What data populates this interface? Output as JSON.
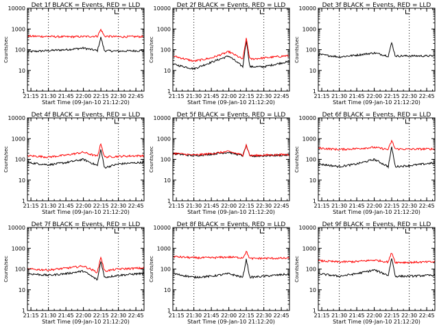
{
  "figure": {
    "x_axis_label": "Start Time (09-Jan-10 21:12:20)",
    "y_axis_label": "Counts/sec",
    "x_tick_labels": [
      "21:15",
      "21:30",
      "21:45",
      "22:00",
      "22:15",
      "22:30",
      "22:45"
    ],
    "y_tick_labels": [
      "1",
      "10",
      "100",
      "1000",
      "10000"
    ],
    "events_color": "#000000",
    "lld_color": "#ff0000"
  },
  "chart_data": [
    {
      "type": "line",
      "title": "Det 1f BLACK = Events, RED = LLD",
      "yscale": "log",
      "ylim": [
        1,
        10000
      ],
      "x": [
        "21:12",
        "21:45",
        "22:00",
        "22:12",
        "22:15",
        "22:18",
        "22:30",
        "22:48"
      ],
      "series": [
        {
          "name": "Events",
          "values": [
            80,
            100,
            120,
            90,
            400,
            90,
            85,
            90
          ]
        },
        {
          "name": "LLD",
          "values": [
            450,
            420,
            430,
            450,
            950,
            450,
            420,
            430
          ]
        }
      ]
    },
    {
      "type": "line",
      "title": "Det 2f BLACK = Events, RED = LLD",
      "yscale": "log",
      "ylim": [
        1,
        10000
      ],
      "x": [
        "21:12",
        "21:30",
        "21:45",
        "22:00",
        "22:12",
        "22:15",
        "22:18",
        "22:30",
        "22:48"
      ],
      "series": [
        {
          "name": "Events",
          "values": [
            20,
            12,
            25,
            50,
            15,
            300,
            15,
            15,
            25
          ]
        },
        {
          "name": "LLD",
          "values": [
            50,
            28,
            40,
            80,
            35,
            350,
            35,
            40,
            50
          ]
        }
      ]
    },
    {
      "type": "line",
      "title": "Det 3f BLACK = Events, RED = LLD",
      "yscale": "log",
      "ylim": [
        1,
        10000
      ],
      "x": [
        "21:12",
        "21:30",
        "21:45",
        "22:00",
        "22:12",
        "22:15",
        "22:18",
        "22:30",
        "22:48"
      ],
      "series": [
        {
          "name": "Events",
          "values": [
            60,
            45,
            55,
            70,
            50,
            220,
            50,
            50,
            50
          ]
        }
      ]
    },
    {
      "type": "line",
      "title": "Det 4f BLACK = Events, RED = LLD",
      "yscale": "log",
      "ylim": [
        1,
        10000
      ],
      "x": [
        "21:12",
        "21:30",
        "21:45",
        "22:00",
        "22:12",
        "22:15",
        "22:18",
        "22:30",
        "22:48"
      ],
      "series": [
        {
          "name": "Events",
          "values": [
            70,
            55,
            70,
            100,
            50,
            300,
            40,
            60,
            70
          ]
        },
        {
          "name": "LLD",
          "values": [
            150,
            130,
            160,
            220,
            140,
            600,
            130,
            140,
            150
          ]
        }
      ]
    },
    {
      "type": "line",
      "title": "Det 5f BLACK = Events, RED = LLD",
      "yscale": "log",
      "ylim": [
        1,
        10000
      ],
      "x": [
        "21:12",
        "21:30",
        "21:45",
        "22:00",
        "22:12",
        "22:15",
        "22:18",
        "22:30",
        "22:48"
      ],
      "series": [
        {
          "name": "Events",
          "values": [
            190,
            150,
            180,
            220,
            150,
            480,
            140,
            150,
            160
          ]
        },
        {
          "name": "LLD",
          "values": [
            200,
            160,
            190,
            240,
            160,
            500,
            150,
            160,
            170
          ]
        }
      ]
    },
    {
      "type": "line",
      "title": "Det 6f BLACK = Events, RED = LLD",
      "yscale": "log",
      "ylim": [
        1,
        10000
      ],
      "x": [
        "21:12",
        "21:30",
        "21:45",
        "22:00",
        "22:12",
        "22:15",
        "22:18",
        "22:30",
        "22:48"
      ],
      "series": [
        {
          "name": "Events",
          "values": [
            60,
            45,
            60,
            100,
            45,
            400,
            45,
            50,
            65
          ]
        },
        {
          "name": "LLD",
          "values": [
            350,
            300,
            330,
            380,
            300,
            800,
            320,
            310,
            320
          ]
        }
      ]
    },
    {
      "type": "line",
      "title": "Det 7f BLACK = Events, RED = LLD",
      "yscale": "log",
      "ylim": [
        1,
        10000
      ],
      "x": [
        "21:12",
        "21:30",
        "21:45",
        "22:00",
        "22:12",
        "22:15",
        "22:18",
        "22:30",
        "22:48"
      ],
      "series": [
        {
          "name": "Events",
          "values": [
            60,
            50,
            60,
            80,
            30,
            250,
            40,
            50,
            60
          ]
        },
        {
          "name": "LLD",
          "values": [
            100,
            90,
            110,
            140,
            70,
            400,
            80,
            100,
            110
          ]
        }
      ]
    },
    {
      "type": "line",
      "title": "Det 8f BLACK = Events, RED = LLD",
      "yscale": "log",
      "ylim": [
        1,
        10000
      ],
      "x": [
        "21:12",
        "21:30",
        "21:45",
        "22:00",
        "22:12",
        "22:15",
        "22:18",
        "22:30",
        "22:48"
      ],
      "series": [
        {
          "name": "Events",
          "values": [
            60,
            40,
            45,
            60,
            40,
            300,
            40,
            45,
            55
          ]
        },
        {
          "name": "LLD",
          "values": [
            400,
            350,
            350,
            380,
            350,
            700,
            320,
            330,
            330
          ]
        }
      ]
    },
    {
      "type": "line",
      "title": "Det 9f BLACK = Events, RED = LLD",
      "yscale": "log",
      "ylim": [
        1,
        10000
      ],
      "x": [
        "21:12",
        "21:30",
        "21:45",
        "22:00",
        "22:12",
        "22:15",
        "22:18",
        "22:30",
        "22:48"
      ],
      "series": [
        {
          "name": "Events",
          "values": [
            60,
            45,
            60,
            90,
            50,
            350,
            45,
            45,
            50
          ]
        },
        {
          "name": "LLD",
          "values": [
            250,
            220,
            230,
            270,
            220,
            650,
            210,
            210,
            220
          ]
        }
      ]
    }
  ]
}
